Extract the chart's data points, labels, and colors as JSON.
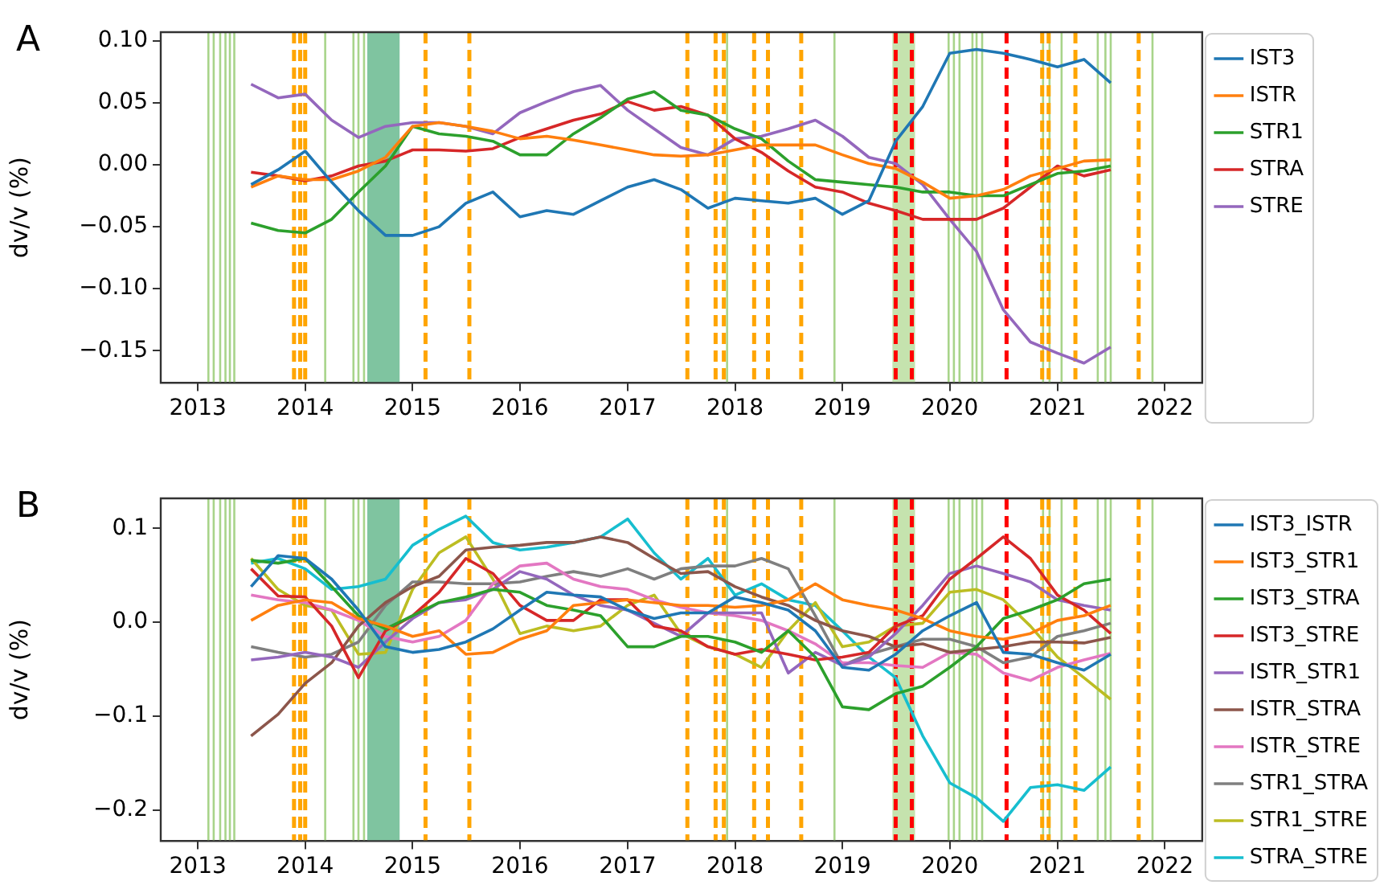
{
  "chart_data": [
    {
      "type": "line",
      "title": "A",
      "ylabel": "dv/v (%)",
      "legend": "right",
      "grid": false,
      "xlim": [
        "2012-08-28",
        "2022-05-08"
      ],
      "xticks": [
        "2013",
        "2014",
        "2015",
        "2016",
        "2017",
        "2018",
        "2019",
        "2020",
        "2021",
        "2022"
      ],
      "ylim": [
        -0.176,
        0.107
      ],
      "yticks": [
        {
          "value": -0.15,
          "label": "−0.15"
        },
        {
          "value": -0.1,
          "label": "−0.10"
        },
        {
          "value": -0.05,
          "label": "−0.05"
        },
        {
          "value": 0,
          "label": "0.00"
        },
        {
          "value": 0.05,
          "label": "0.05"
        },
        {
          "value": 0.1,
          "label": "0.10"
        }
      ],
      "x": [
        "2013-07",
        "2013-10",
        "2014-01",
        "2014-04",
        "2014-07",
        "2014-10",
        "2015-01",
        "2015-04",
        "2015-07",
        "2015-10",
        "2016-01",
        "2016-04",
        "2016-07",
        "2016-10",
        "2017-01",
        "2017-04",
        "2017-07",
        "2017-10",
        "2018-01",
        "2018-04",
        "2018-07",
        "2018-10",
        "2019-01",
        "2019-04",
        "2019-07",
        "2019-10",
        "2020-01",
        "2020-04",
        "2020-07",
        "2020-10",
        "2021-01",
        "2021-04",
        "2021-07"
      ],
      "series": [
        {
          "name": "IST3",
          "color": "#1f77b4",
          "values": [
            -0.016,
            -0.004,
            0.011,
            -0.014,
            -0.037,
            -0.057,
            -0.057,
            -0.05,
            -0.031,
            -0.022,
            -0.042,
            -0.037,
            -0.04,
            -0.029,
            -0.018,
            -0.012,
            -0.02,
            -0.035,
            -0.027,
            -0.029,
            -0.031,
            -0.027,
            -0.04,
            -0.029,
            0.019,
            0.047,
            0.09,
            0.093,
            0.09,
            0.085,
            0.079,
            0.085,
            0.066
          ]
        },
        {
          "name": "ISTR",
          "color": "#ff7f0e",
          "values": [
            -0.018,
            -0.009,
            -0.012,
            -0.012,
            -0.005,
            0.006,
            0.031,
            0.034,
            0.031,
            0.027,
            0.021,
            0.023,
            0.02,
            0.016,
            0.012,
            0.008,
            0.007,
            0.008,
            0.012,
            0.016,
            0.016,
            0.016,
            0.008,
            0.001,
            -0.003,
            -0.014,
            -0.027,
            -0.025,
            -0.02,
            -0.009,
            -0.003,
            0.003,
            0.004
          ]
        },
        {
          "name": "STR1",
          "color": "#2ca02c",
          "values": [
            -0.047,
            -0.053,
            -0.055,
            -0.044,
            -0.022,
            -0.001,
            0.031,
            0.025,
            0.023,
            0.019,
            0.008,
            0.008,
            0.025,
            0.038,
            0.053,
            0.059,
            0.044,
            0.04,
            0.029,
            0.021,
            0.003,
            -0.012,
            -0.014,
            -0.016,
            -0.018,
            -0.022,
            -0.022,
            -0.025,
            -0.025,
            -0.016,
            -0.007,
            -0.005,
            -0.001
          ]
        },
        {
          "name": "STRA",
          "color": "#d62728",
          "values": [
            -0.006,
            -0.009,
            -0.013,
            -0.009,
            -0.001,
            0.003,
            0.012,
            0.012,
            0.011,
            0.013,
            0.022,
            0.029,
            0.036,
            0.041,
            0.051,
            0.044,
            0.047,
            0.04,
            0.021,
            0.01,
            -0.005,
            -0.018,
            -0.022,
            -0.031,
            -0.037,
            -0.044,
            -0.044,
            -0.044,
            -0.035,
            -0.018,
            -0.001,
            -0.009,
            -0.004
          ]
        },
        {
          "name": "STRE",
          "color": "#9467bd",
          "values": [
            0.065,
            0.054,
            0.057,
            0.036,
            0.022,
            0.031,
            0.034,
            0.034,
            0.031,
            0.025,
            0.042,
            0.051,
            0.059,
            0.064,
            0.044,
            0.029,
            0.014,
            0.008,
            0.021,
            0.023,
            0.029,
            0.036,
            0.023,
            0.006,
            0.001,
            -0.016,
            -0.044,
            -0.07,
            -0.117,
            -0.143,
            -0.152,
            -0.16,
            -0.147
          ]
        }
      ],
      "bands": [
        {
          "axis": "x",
          "from": "2014-07-31",
          "to": "2014-11-18",
          "color": "#7fc4a0"
        },
        {
          "axis": "x",
          "from": "2019-06-20",
          "to": "2019-09-05",
          "color": "#c5e3ae"
        }
      ],
      "ref_lines": [
        {
          "axis": "x",
          "value": "2013-02-06",
          "color": "#a8d48a",
          "line_style": "solid"
        },
        {
          "axis": "x",
          "value": "2013-02-24",
          "color": "#a8d48a",
          "line_style": "solid"
        },
        {
          "axis": "x",
          "value": "2013-03-18",
          "color": "#a8d48a",
          "line_style": "solid"
        },
        {
          "axis": "x",
          "value": "2013-04-05",
          "color": "#a8d48a",
          "line_style": "solid"
        },
        {
          "axis": "x",
          "value": "2013-04-20",
          "color": "#a8d48a",
          "line_style": "solid"
        },
        {
          "axis": "x",
          "value": "2013-05-05",
          "color": "#a8d48a",
          "line_style": "solid"
        },
        {
          "axis": "x",
          "value": "2014-03-10",
          "color": "#a8d48a",
          "line_style": "solid"
        },
        {
          "axis": "x",
          "value": "2014-06-14",
          "color": "#a8d48a",
          "line_style": "solid"
        },
        {
          "axis": "x",
          "value": "2014-07-01",
          "color": "#a8d48a",
          "line_style": "solid"
        },
        {
          "axis": "x",
          "value": "2014-07-20",
          "color": "#a8d48a",
          "line_style": "solid"
        },
        {
          "axis": "x",
          "value": "2017-12-05",
          "color": "#a8d48a",
          "line_style": "solid"
        },
        {
          "axis": "x",
          "value": "2018-12-05",
          "color": "#a8d48a",
          "line_style": "solid"
        },
        {
          "axis": "x",
          "value": "2019-12-28",
          "color": "#a8d48a",
          "line_style": "solid"
        },
        {
          "axis": "x",
          "value": "2020-01-15",
          "color": "#a8d48a",
          "line_style": "solid"
        },
        {
          "axis": "x",
          "value": "2020-02-03",
          "color": "#a8d48a",
          "line_style": "solid"
        },
        {
          "axis": "x",
          "value": "2020-03-18",
          "color": "#a8d48a",
          "line_style": "solid"
        },
        {
          "axis": "x",
          "value": "2020-04-01",
          "color": "#a8d48a",
          "line_style": "solid"
        },
        {
          "axis": "x",
          "value": "2020-04-20",
          "color": "#a8d48a",
          "line_style": "solid"
        },
        {
          "axis": "x",
          "value": "2020-11-13",
          "color": "#a8d48a",
          "line_style": "solid"
        },
        {
          "axis": "x",
          "value": "2020-12-05",
          "color": "#a8d48a",
          "line_style": "solid"
        },
        {
          "axis": "x",
          "value": "2021-01-15",
          "color": "#a8d48a",
          "line_style": "solid"
        },
        {
          "axis": "x",
          "value": "2021-05-18",
          "color": "#a8d48a",
          "line_style": "solid"
        },
        {
          "axis": "x",
          "value": "2021-06-13",
          "color": "#a8d48a",
          "line_style": "solid"
        },
        {
          "axis": "x",
          "value": "2021-07-01",
          "color": "#a8d48a",
          "line_style": "solid"
        },
        {
          "axis": "x",
          "value": "2021-11-20",
          "color": "#a8d48a",
          "line_style": "solid"
        },
        {
          "axis": "x",
          "value": "2013-11-24",
          "color": "#ffa500",
          "line_style": "dashed"
        },
        {
          "axis": "x",
          "value": "2013-12-15",
          "color": "#ffa500",
          "line_style": "dashed"
        },
        {
          "axis": "x",
          "value": "2014-01-01",
          "color": "#ffa500",
          "line_style": "dashed"
        },
        {
          "axis": "x",
          "value": "2015-02-14",
          "color": "#ffa500",
          "line_style": "dashed"
        },
        {
          "axis": "x",
          "value": "2015-07-13",
          "color": "#ffa500",
          "line_style": "dashed"
        },
        {
          "axis": "x",
          "value": "2017-07-23",
          "color": "#ffa500",
          "line_style": "dashed"
        },
        {
          "axis": "x",
          "value": "2017-10-27",
          "color": "#ffa500",
          "line_style": "dashed"
        },
        {
          "axis": "x",
          "value": "2017-11-24",
          "color": "#ffa500",
          "line_style": "dashed"
        },
        {
          "axis": "x",
          "value": "2018-03-07",
          "color": "#ffa500",
          "line_style": "dashed"
        },
        {
          "axis": "x",
          "value": "2018-04-23",
          "color": "#ffa500",
          "line_style": "dashed"
        },
        {
          "axis": "x",
          "value": "2018-08-14",
          "color": "#ffa500",
          "line_style": "dashed"
        },
        {
          "axis": "x",
          "value": "2020-11-10",
          "color": "#ffa500",
          "line_style": "dashed"
        },
        {
          "axis": "x",
          "value": "2020-12-02",
          "color": "#ffa500",
          "line_style": "dashed"
        },
        {
          "axis": "x",
          "value": "2021-03-03",
          "color": "#ffa500",
          "line_style": "dashed"
        },
        {
          "axis": "x",
          "value": "2021-10-04",
          "color": "#ffa500",
          "line_style": "dashed"
        },
        {
          "axis": "x",
          "value": "2019-07-01",
          "color": "#ff0000",
          "line_style": "dashed"
        },
        {
          "axis": "x",
          "value": "2019-08-25",
          "color": "#ff0000",
          "line_style": "dashed"
        },
        {
          "axis": "x",
          "value": "2020-07-12",
          "color": "#ff0000",
          "line_style": "dashed"
        }
      ]
    },
    {
      "type": "line",
      "title": "B",
      "ylabel": "dv/v (%)",
      "legend": "right",
      "grid": false,
      "xlim": [
        "2012-08-28",
        "2022-05-08"
      ],
      "xticks": [
        "2013",
        "2014",
        "2015",
        "2016",
        "2017",
        "2018",
        "2019",
        "2020",
        "2021",
        "2022"
      ],
      "ylim": [
        -0.233,
        0.132
      ],
      "yticks": [
        {
          "value": -0.2,
          "label": "−0.2"
        },
        {
          "value": -0.1,
          "label": "−0.1"
        },
        {
          "value": 0,
          "label": "0.0"
        },
        {
          "value": 0.1,
          "label": "0.1"
        }
      ],
      "x": [
        "2013-07",
        "2013-10",
        "2014-01",
        "2014-04",
        "2014-07",
        "2014-10",
        "2015-01",
        "2015-04",
        "2015-07",
        "2015-10",
        "2016-01",
        "2016-04",
        "2016-07",
        "2016-10",
        "2017-01",
        "2017-04",
        "2017-07",
        "2017-10",
        "2018-01",
        "2018-04",
        "2018-07",
        "2018-10",
        "2019-01",
        "2019-04",
        "2019-07",
        "2019-10",
        "2020-01",
        "2020-04",
        "2020-07",
        "2020-10",
        "2021-01",
        "2021-04",
        "2021-07"
      ],
      "series": [
        {
          "name": "IST3_ISTR",
          "color": "#1f77b4",
          "values": [
            0.038,
            0.071,
            0.068,
            0.046,
            0.013,
            -0.026,
            -0.032,
            -0.029,
            -0.021,
            -0.007,
            0.013,
            0.032,
            0.029,
            0.027,
            0.013,
            0.004,
            0.01,
            0.01,
            0.027,
            0.021,
            0.013,
            -0.009,
            -0.048,
            -0.051,
            -0.034,
            -0.009,
            0.007,
            0.021,
            -0.032,
            -0.034,
            -0.043,
            -0.051,
            -0.034
          ]
        },
        {
          "name": "IST3_STR1",
          "color": "#ff7f0e",
          "values": [
            0.002,
            0.018,
            0.024,
            0.021,
            0.004,
            -0.004,
            -0.015,
            -0.009,
            -0.034,
            -0.032,
            -0.018,
            -0.009,
            0.018,
            0.021,
            0.024,
            0.021,
            0.018,
            0.018,
            0.016,
            0.018,
            0.024,
            0.041,
            0.024,
            0.018,
            0.013,
            0.004,
            -0.009,
            -0.015,
            -0.018,
            -0.012,
            0.002,
            0.007,
            0.018
          ]
        },
        {
          "name": "IST3_STRA",
          "color": "#2ca02c",
          "values": [
            0.066,
            0.063,
            0.068,
            0.038,
            0.007,
            -0.007,
            0.007,
            0.021,
            0.027,
            0.035,
            0.032,
            0.018,
            0.013,
            0.007,
            -0.026,
            -0.026,
            -0.015,
            -0.015,
            -0.021,
            -0.032,
            -0.009,
            -0.037,
            -0.09,
            -0.093,
            -0.076,
            -0.068,
            -0.048,
            -0.026,
            0.004,
            0.013,
            0.024,
            0.041,
            0.046
          ]
        },
        {
          "name": "IST3_STRE",
          "color": "#d62728",
          "values": [
            0.057,
            0.028,
            0.027,
            -0.004,
            -0.059,
            -0.009,
            0.007,
            0.032,
            0.068,
            0.052,
            0.018,
            0.002,
            0.002,
            0.024,
            0.024,
            -0.004,
            -0.009,
            -0.026,
            -0.034,
            -0.029,
            -0.034,
            -0.04,
            -0.037,
            -0.032,
            -0.004,
            0.007,
            0.046,
            0.068,
            0.091,
            0.068,
            0.029,
            0.013,
            -0.012
          ]
        },
        {
          "name": "ISTR_STR1",
          "color": "#9467bd",
          "values": [
            -0.04,
            -0.037,
            -0.032,
            -0.037,
            -0.048,
            -0.021,
            0.004,
            0.021,
            0.024,
            0.035,
            0.054,
            0.046,
            0.029,
            0.018,
            0.013,
            -0.001,
            -0.015,
            0.01,
            0.01,
            0.01,
            -0.054,
            -0.032,
            -0.046,
            -0.037,
            -0.012,
            0.018,
            0.052,
            0.06,
            0.052,
            0.043,
            0.024,
            0.018,
            0.013
          ]
        },
        {
          "name": "ISTR_STRA",
          "color": "#8c564b",
          "values": [
            -0.121,
            -0.098,
            -0.065,
            -0.043,
            -0.004,
            0.021,
            0.038,
            0.049,
            0.077,
            0.08,
            0.082,
            0.085,
            0.085,
            0.091,
            0.085,
            0.068,
            0.052,
            0.054,
            0.038,
            0.027,
            0.018,
            0.002,
            -0.009,
            -0.015,
            -0.026,
            -0.023,
            -0.032,
            -0.029,
            -0.026,
            -0.021,
            -0.021,
            -0.022,
            -0.016
          ]
        },
        {
          "name": "ISTR_STRE",
          "color": "#e377c2",
          "values": [
            0.029,
            0.024,
            0.021,
            0.013,
            0.002,
            -0.015,
            -0.021,
            -0.015,
            0.002,
            0.041,
            0.06,
            0.063,
            0.046,
            0.038,
            0.035,
            0.024,
            0.016,
            0.01,
            0.007,
            0.002,
            -0.009,
            -0.023,
            -0.043,
            -0.043,
            -0.046,
            -0.048,
            -0.032,
            -0.034,
            -0.054,
            -0.062,
            -0.048,
            -0.04,
            -0.033
          ]
        },
        {
          "name": "STR1_STRA",
          "color": "#7f7f7f",
          "values": [
            -0.026,
            -0.032,
            -0.037,
            -0.034,
            -0.021,
            0.018,
            0.043,
            0.043,
            0.041,
            0.041,
            0.043,
            0.049,
            0.054,
            0.049,
            0.057,
            0.046,
            0.057,
            0.06,
            0.06,
            0.068,
            0.057,
            0.007,
            -0.046,
            -0.034,
            -0.026,
            -0.018,
            -0.018,
            -0.026,
            -0.043,
            -0.037,
            -0.015,
            -0.009,
            -0.001
          ]
        },
        {
          "name": "STR1_STRE",
          "color": "#bcbd22",
          "values": [
            0.068,
            0.035,
            0.018,
            0.013,
            -0.034,
            -0.032,
            0.035,
            0.074,
            0.091,
            0.046,
            -0.012,
            -0.004,
            -0.009,
            -0.004,
            0.018,
            0.029,
            -0.012,
            -0.026,
            -0.034,
            -0.048,
            -0.009,
            0.021,
            -0.026,
            -0.021,
            -0.004,
            -0.001,
            0.032,
            0.035,
            0.024,
            -0.004,
            -0.037,
            -0.059,
            -0.082
          ]
        },
        {
          "name": "STRA_STRE",
          "color": "#17becf",
          "values": [
            0.063,
            0.068,
            0.057,
            0.035,
            0.038,
            0.046,
            0.082,
            0.099,
            0.113,
            0.085,
            0.077,
            0.08,
            0.085,
            0.091,
            0.11,
            0.074,
            0.046,
            0.068,
            0.029,
            0.041,
            0.024,
            0.018,
            -0.009,
            -0.037,
            -0.059,
            -0.121,
            -0.171,
            -0.187,
            -0.212,
            -0.176,
            -0.173,
            -0.179,
            -0.154
          ]
        }
      ],
      "bands": [
        {
          "axis": "x",
          "from": "2014-07-31",
          "to": "2014-11-18",
          "color": "#7fc4a0"
        },
        {
          "axis": "x",
          "from": "2019-06-20",
          "to": "2019-09-05",
          "color": "#c5e3ae"
        }
      ],
      "ref_lines": [
        {
          "axis": "x",
          "value": "2013-02-06",
          "color": "#a8d48a",
          "line_style": "solid"
        },
        {
          "axis": "x",
          "value": "2013-02-24",
          "color": "#a8d48a",
          "line_style": "solid"
        },
        {
          "axis": "x",
          "value": "2013-03-18",
          "color": "#a8d48a",
          "line_style": "solid"
        },
        {
          "axis": "x",
          "value": "2013-04-05",
          "color": "#a8d48a",
          "line_style": "solid"
        },
        {
          "axis": "x",
          "value": "2013-04-20",
          "color": "#a8d48a",
          "line_style": "solid"
        },
        {
          "axis": "x",
          "value": "2013-05-05",
          "color": "#a8d48a",
          "line_style": "solid"
        },
        {
          "axis": "x",
          "value": "2014-03-10",
          "color": "#a8d48a",
          "line_style": "solid"
        },
        {
          "axis": "x",
          "value": "2014-06-14",
          "color": "#a8d48a",
          "line_style": "solid"
        },
        {
          "axis": "x",
          "value": "2014-07-01",
          "color": "#a8d48a",
          "line_style": "solid"
        },
        {
          "axis": "x",
          "value": "2014-07-20",
          "color": "#a8d48a",
          "line_style": "solid"
        },
        {
          "axis": "x",
          "value": "2017-12-05",
          "color": "#a8d48a",
          "line_style": "solid"
        },
        {
          "axis": "x",
          "value": "2018-12-05",
          "color": "#a8d48a",
          "line_style": "solid"
        },
        {
          "axis": "x",
          "value": "2019-12-28",
          "color": "#a8d48a",
          "line_style": "solid"
        },
        {
          "axis": "x",
          "value": "2020-01-15",
          "color": "#a8d48a",
          "line_style": "solid"
        },
        {
          "axis": "x",
          "value": "2020-02-03",
          "color": "#a8d48a",
          "line_style": "solid"
        },
        {
          "axis": "x",
          "value": "2020-03-18",
          "color": "#a8d48a",
          "line_style": "solid"
        },
        {
          "axis": "x",
          "value": "2020-04-01",
          "color": "#a8d48a",
          "line_style": "solid"
        },
        {
          "axis": "x",
          "value": "2020-04-20",
          "color": "#a8d48a",
          "line_style": "solid"
        },
        {
          "axis": "x",
          "value": "2020-11-13",
          "color": "#a8d48a",
          "line_style": "solid"
        },
        {
          "axis": "x",
          "value": "2020-12-05",
          "color": "#a8d48a",
          "line_style": "solid"
        },
        {
          "axis": "x",
          "value": "2021-01-15",
          "color": "#a8d48a",
          "line_style": "solid"
        },
        {
          "axis": "x",
          "value": "2021-05-18",
          "color": "#a8d48a",
          "line_style": "solid"
        },
        {
          "axis": "x",
          "value": "2021-06-13",
          "color": "#a8d48a",
          "line_style": "solid"
        },
        {
          "axis": "x",
          "value": "2021-07-01",
          "color": "#a8d48a",
          "line_style": "solid"
        },
        {
          "axis": "x",
          "value": "2021-11-20",
          "color": "#a8d48a",
          "line_style": "solid"
        },
        {
          "axis": "x",
          "value": "2013-11-24",
          "color": "#ffa500",
          "line_style": "dashed"
        },
        {
          "axis": "x",
          "value": "2013-12-15",
          "color": "#ffa500",
          "line_style": "dashed"
        },
        {
          "axis": "x",
          "value": "2014-01-01",
          "color": "#ffa500",
          "line_style": "dashed"
        },
        {
          "axis": "x",
          "value": "2015-02-14",
          "color": "#ffa500",
          "line_style": "dashed"
        },
        {
          "axis": "x",
          "value": "2015-07-13",
          "color": "#ffa500",
          "line_style": "dashed"
        },
        {
          "axis": "x",
          "value": "2017-07-23",
          "color": "#ffa500",
          "line_style": "dashed"
        },
        {
          "axis": "x",
          "value": "2017-10-27",
          "color": "#ffa500",
          "line_style": "dashed"
        },
        {
          "axis": "x",
          "value": "2017-11-24",
          "color": "#ffa500",
          "line_style": "dashed"
        },
        {
          "axis": "x",
          "value": "2018-03-07",
          "color": "#ffa500",
          "line_style": "dashed"
        },
        {
          "axis": "x",
          "value": "2018-04-23",
          "color": "#ffa500",
          "line_style": "dashed"
        },
        {
          "axis": "x",
          "value": "2018-08-14",
          "color": "#ffa500",
          "line_style": "dashed"
        },
        {
          "axis": "x",
          "value": "2020-11-10",
          "color": "#ffa500",
          "line_style": "dashed"
        },
        {
          "axis": "x",
          "value": "2020-12-02",
          "color": "#ffa500",
          "line_style": "dashed"
        },
        {
          "axis": "x",
          "value": "2021-03-03",
          "color": "#ffa500",
          "line_style": "dashed"
        },
        {
          "axis": "x",
          "value": "2021-10-04",
          "color": "#ffa500",
          "line_style": "dashed"
        },
        {
          "axis": "x",
          "value": "2019-07-01",
          "color": "#ff0000",
          "line_style": "dashed"
        },
        {
          "axis": "x",
          "value": "2019-08-25",
          "color": "#ff0000",
          "line_style": "dashed"
        },
        {
          "axis": "x",
          "value": "2020-07-12",
          "color": "#ff0000",
          "line_style": "dashed"
        }
      ]
    }
  ]
}
